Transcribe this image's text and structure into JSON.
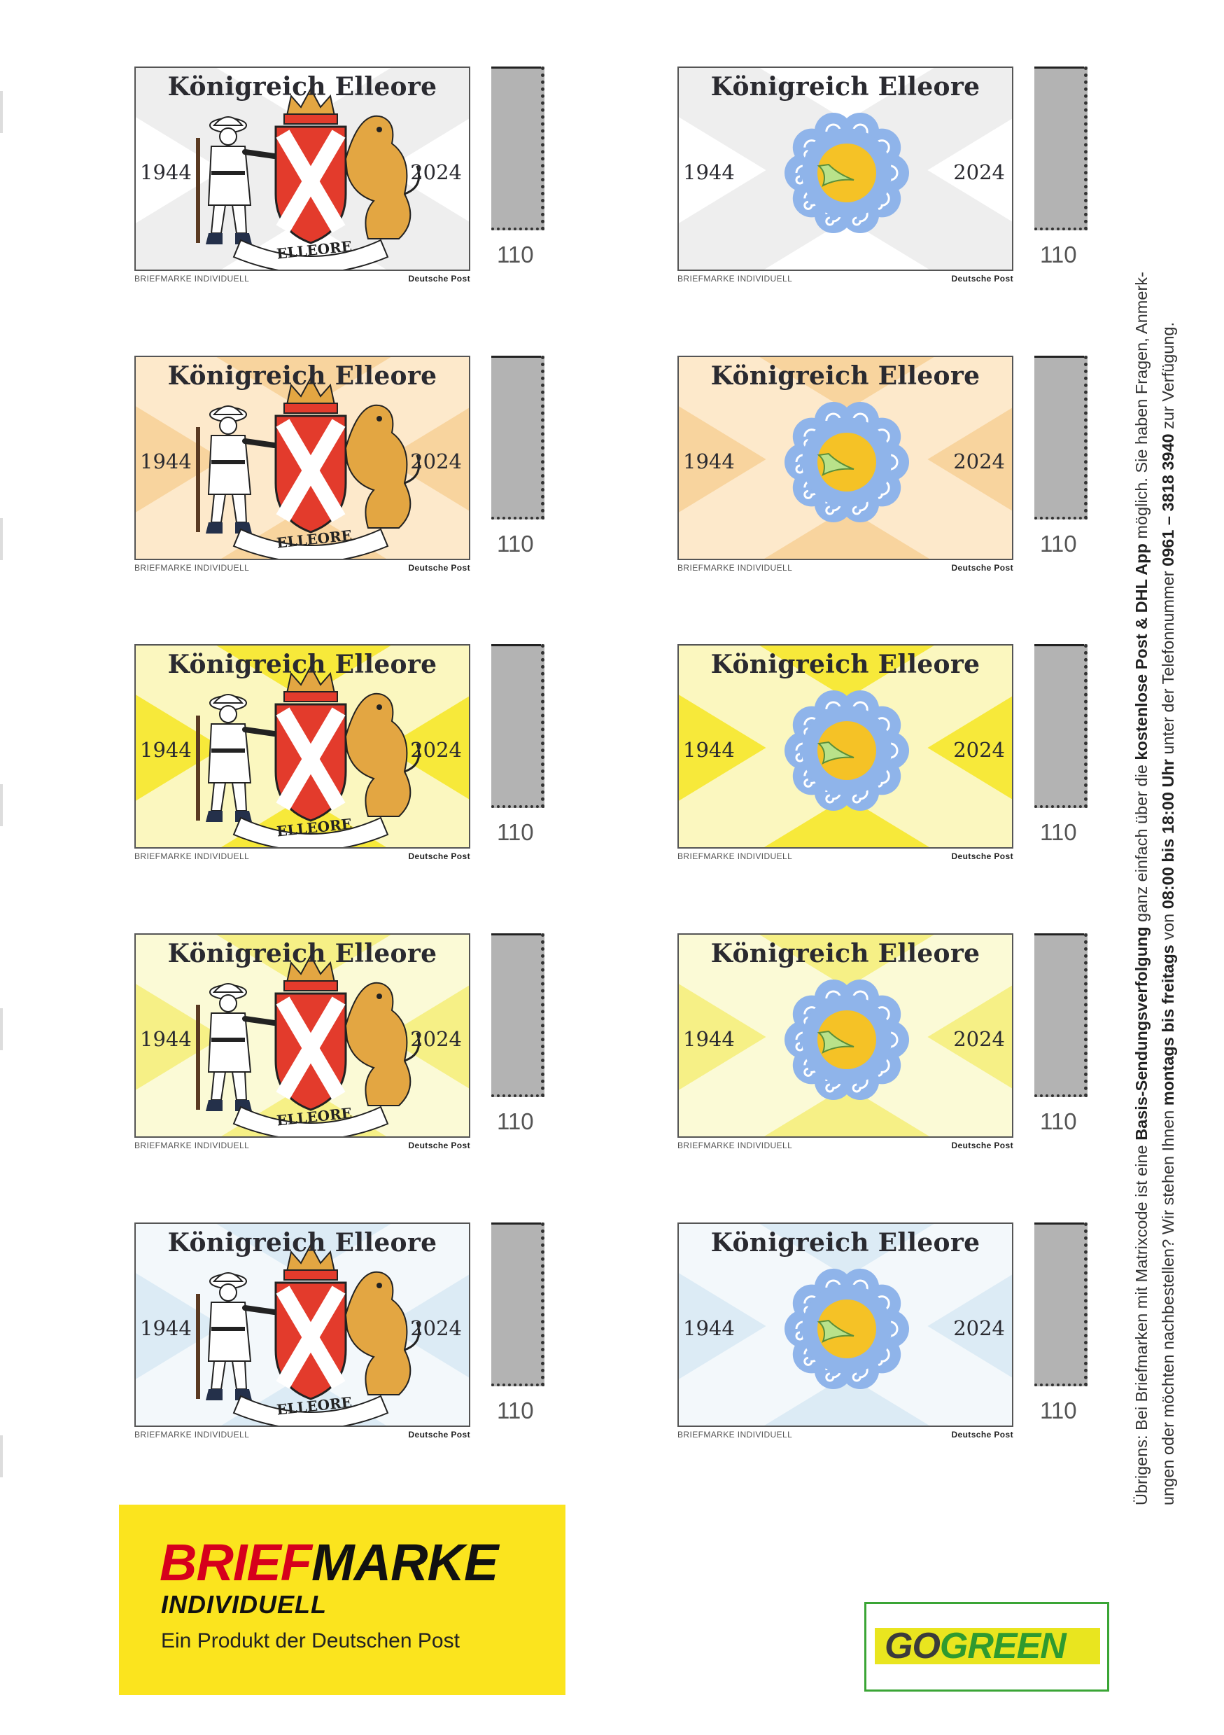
{
  "stamp": {
    "title": "Königreich Elleore",
    "year_left": "1944",
    "year_right": "2024",
    "banner": "ELLEORE",
    "caption_left": "BRIEFMARKE INDIVIDUELL",
    "caption_right": "Deutsche Post",
    "value": "110"
  },
  "rows": [
    {
      "bg": "#ffffff",
      "x": "#eeeeee",
      "coat_bg": "#ffffff",
      "sun_bg": "#ffffff"
    },
    {
      "bg": "#f8d49e",
      "x": "#fde9cb",
      "coat_bg": "#f8d49e",
      "sun_bg": "#f8d49e"
    },
    {
      "bg": "#f7e93a",
      "x": "#fbf7bf",
      "coat_bg": "#f7e93a",
      "sun_bg": "#f7e93a"
    },
    {
      "bg": "#f6f086",
      "x": "#fbfad6",
      "coat_bg": "#f6f086",
      "sun_bg": "#f6f086"
    },
    {
      "bg": "#dcebf5",
      "x": "#f3f8fb",
      "coat_bg": "#dcebf5",
      "sun_bg": "#dcebf5"
    }
  ],
  "colors": {
    "shield_red": "#e33b2c",
    "gold": "#e3a642",
    "swirl_blue": "#8fb4ea",
    "sun_yellow": "#f5c226"
  },
  "side_note": {
    "line1_a": "Übrigens: Bei Briefmarken mit Matrixcode ist eine ",
    "line1_b": "Basis-Sendungsverfolgung",
    "line1_c": " ganz einfach über die ",
    "line1_d": "kostenlose Post & DHL App",
    "line1_e": " möglich. Sie haben Fragen, Anmerk-",
    "line2_a": "ungen oder möchten nachbestellen? Wir stehen Ihnen ",
    "line2_b": "montags bis freitags",
    "line2_c": " von ",
    "line2_d": "08:00 bis 18:00 Uhr",
    "line2_e": " unter der Telefonnummer ",
    "line2_f": "0961 – 3818 3940",
    "line2_g": " zur Verfügung."
  },
  "logo": {
    "brief": "BRIEF",
    "marke": "MARKE",
    "individuell": "INDIVIDUELL",
    "tagline": "Ein Produkt der Deutschen Post"
  },
  "gogreen": {
    "go": "GO",
    "green": "GREEN"
  }
}
